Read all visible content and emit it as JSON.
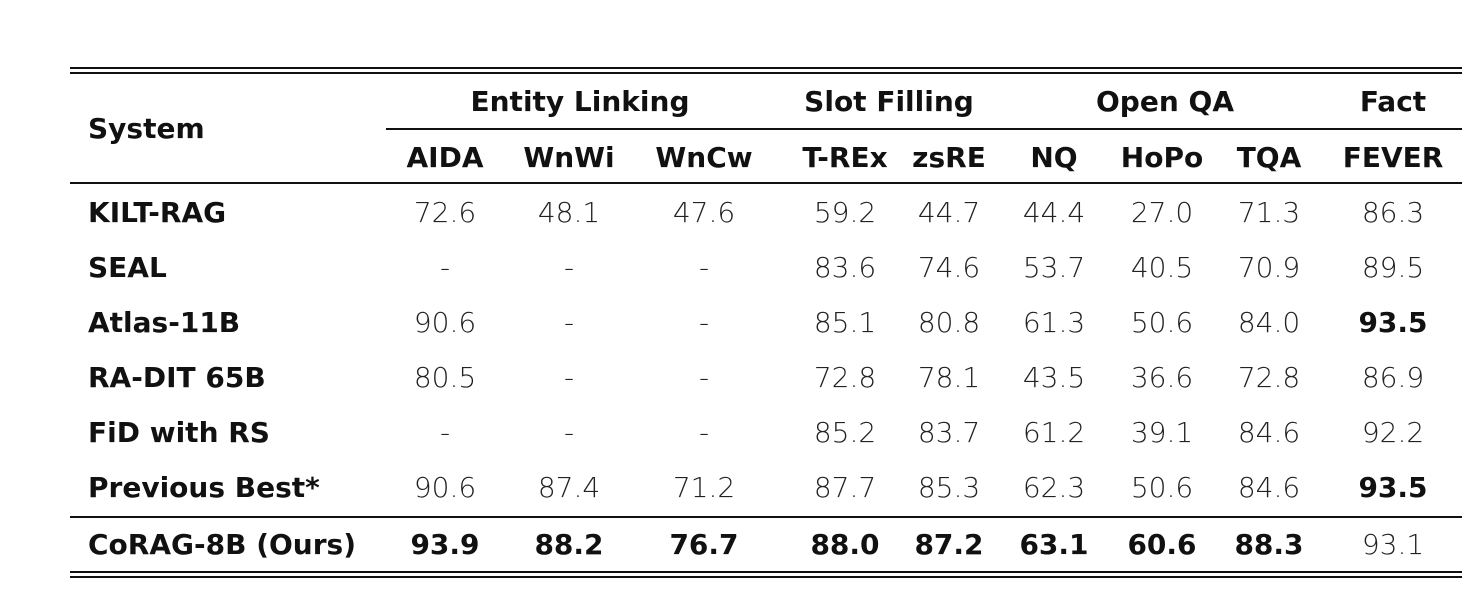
{
  "table": {
    "system_header": "System",
    "groups": [
      "Entity Linking",
      "Slot Filling",
      "Open QA",
      "Fact"
    ],
    "columns": [
      "AIDA",
      "WnWi",
      "WnCw",
      "T-REx",
      "zsRE",
      "NQ",
      "HoPo",
      "TQA",
      "FEVER"
    ],
    "rows": [
      {
        "system": "KILT-RAG",
        "values": [
          "72.6",
          "48.1",
          "47.6",
          "59.2",
          "44.7",
          "44.4",
          "27.0",
          "71.3",
          "86.3"
        ],
        "bold": []
      },
      {
        "system": "SEAL",
        "values": [
          "-",
          "-",
          "-",
          "83.6",
          "74.6",
          "53.7",
          "40.5",
          "70.9",
          "89.5"
        ],
        "bold": []
      },
      {
        "system": "Atlas-11B",
        "values": [
          "90.6",
          "-",
          "-",
          "85.1",
          "80.8",
          "61.3",
          "50.6",
          "84.0",
          "93.5"
        ],
        "bold": [
          8
        ]
      },
      {
        "system": "RA-DIT 65B",
        "values": [
          "80.5",
          "-",
          "-",
          "72.8",
          "78.1",
          "43.5",
          "36.6",
          "72.8",
          "86.9"
        ],
        "bold": []
      },
      {
        "system": "FiD with RS",
        "values": [
          "-",
          "-",
          "-",
          "85.2",
          "83.7",
          "61.2",
          "39.1",
          "84.6",
          "92.2"
        ],
        "bold": []
      },
      {
        "system": "Previous Best*",
        "values": [
          "90.6",
          "87.4",
          "71.2",
          "87.7",
          "85.3",
          "62.3",
          "50.6",
          "84.6",
          "93.5"
        ],
        "bold": [
          8
        ]
      },
      {
        "system": "CoRAG-8B (Ours)",
        "values": [
          "93.9",
          "88.2",
          "76.7",
          "88.0",
          "87.2",
          "63.1",
          "60.6",
          "88.3",
          "93.1"
        ],
        "bold": [
          0,
          1,
          2,
          3,
          4,
          5,
          6,
          7
        ]
      }
    ]
  }
}
